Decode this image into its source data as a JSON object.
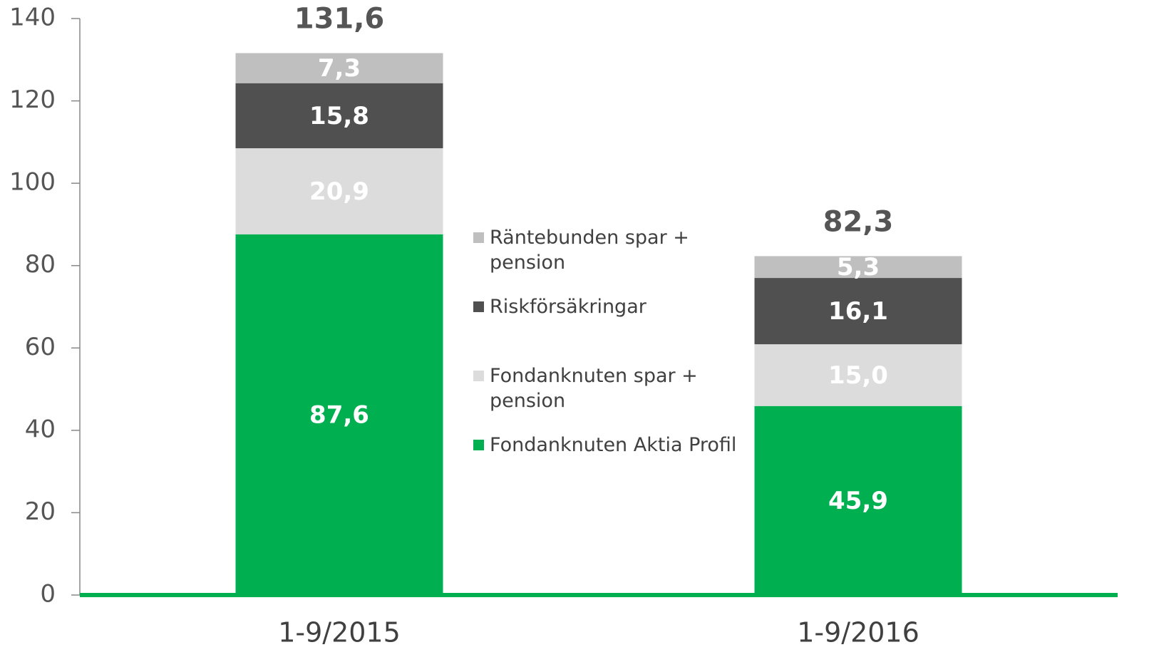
{
  "chart_data": {
    "type": "stacked_bar",
    "categories": [
      "1-9/2015",
      "1-9/2016"
    ],
    "series": [
      {
        "name": "Fondanknuten Aktia Profil",
        "color": "#00b050",
        "values": [
          87.6,
          45.9
        ],
        "value_labels": [
          "87,6",
          "45,9"
        ]
      },
      {
        "name": "Fondanknuten spar + pension",
        "color": "#dcdcdc",
        "values": [
          20.9,
          15.0
        ],
        "value_labels": [
          "20,9",
          "15,0"
        ]
      },
      {
        "name": "Riskförsäkringar",
        "color": "#505050",
        "values": [
          15.8,
          16.1
        ],
        "value_labels": [
          "15,8",
          "16,1"
        ]
      },
      {
        "name": "Räntebunden spar + pension",
        "color": "#bfbfbf",
        "values": [
          7.3,
          5.3
        ],
        "value_labels": [
          "7,3",
          "5,3"
        ]
      }
    ],
    "totals": [
      131.6,
      82.3
    ],
    "total_labels": [
      "131,6",
      "82,3"
    ],
    "ylim": [
      0,
      140
    ],
    "yticks": [
      0,
      20,
      40,
      60,
      80,
      100,
      120,
      140
    ],
    "baseline_color": "#00b050"
  }
}
